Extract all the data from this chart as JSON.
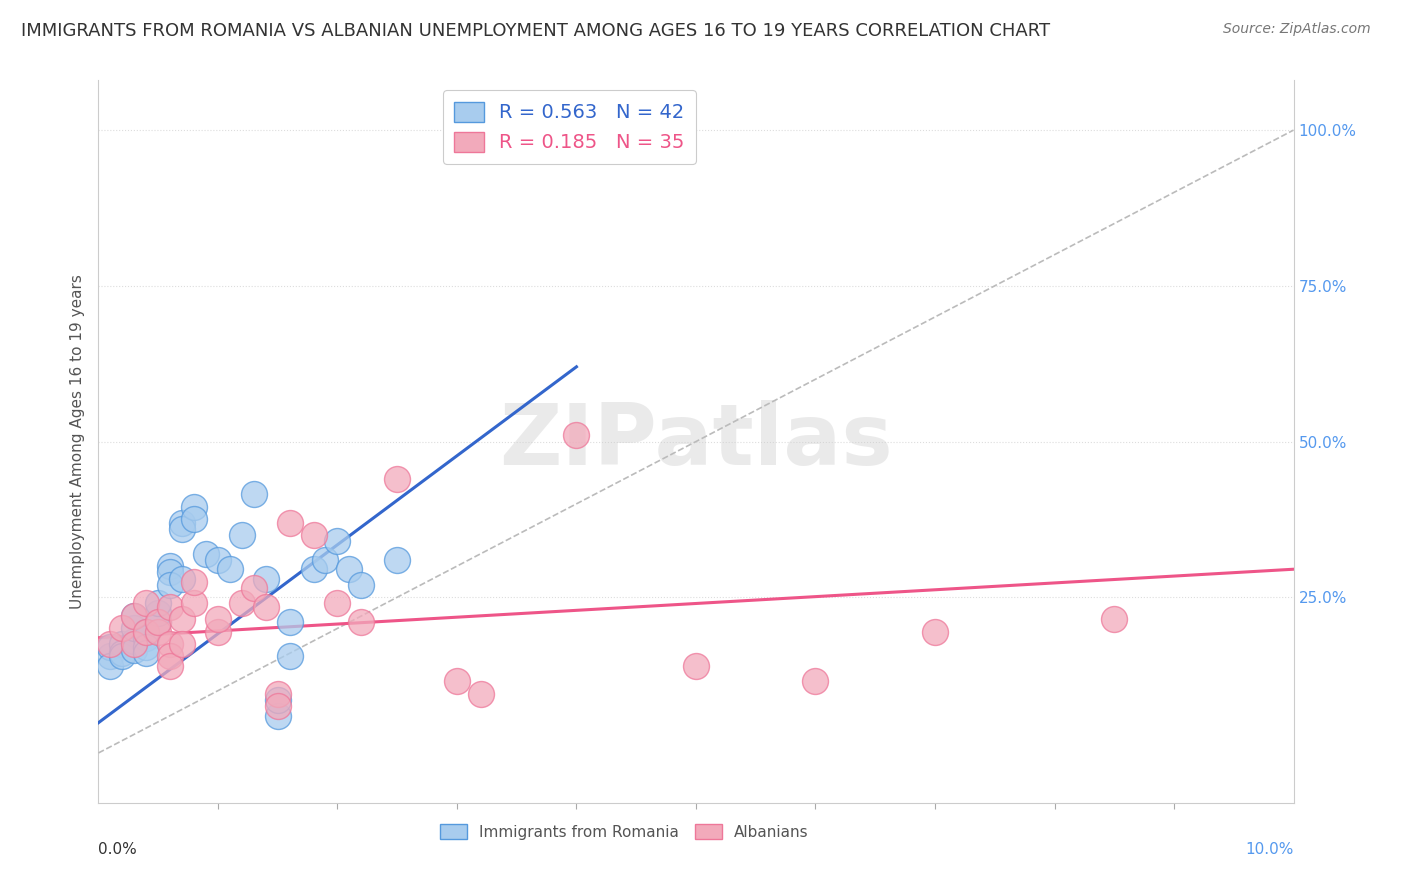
{
  "title": "IMMIGRANTS FROM ROMANIA VS ALBANIAN UNEMPLOYMENT AMONG AGES 16 TO 19 YEARS CORRELATION CHART",
  "source": "Source: ZipAtlas.com",
  "ylabel": "Unemployment Among Ages 16 to 19 years",
  "xmin": 0.0,
  "xmax": 0.1,
  "ymin": -0.08,
  "ymax": 1.08,
  "yticks_right": [
    0.25,
    0.5,
    0.75,
    1.0
  ],
  "ytick_labels_right": [
    "25.0%",
    "50.0%",
    "75.0%",
    "100.0%"
  ],
  "legend_blue_r": "R = 0.563",
  "legend_blue_n": "N = 42",
  "legend_pink_r": "R = 0.185",
  "legend_pink_n": "N = 35",
  "blue_color": "#A8CCEE",
  "pink_color": "#F2AABB",
  "blue_edge_color": "#5599DD",
  "pink_edge_color": "#EE7799",
  "blue_line_color": "#3366CC",
  "pink_line_color": "#EE5588",
  "diag_color": "#BBBBBB",
  "watermark": "ZIPatlas",
  "blue_scatter": [
    [
      0.001,
      0.155
    ],
    [
      0.001,
      0.17
    ],
    [
      0.001,
      0.14
    ],
    [
      0.002,
      0.175
    ],
    [
      0.002,
      0.16
    ],
    [
      0.002,
      0.155
    ],
    [
      0.003,
      0.18
    ],
    [
      0.003,
      0.165
    ],
    [
      0.003,
      0.2
    ],
    [
      0.003,
      0.22
    ],
    [
      0.004,
      0.195
    ],
    [
      0.004,
      0.185
    ],
    [
      0.004,
      0.17
    ],
    [
      0.004,
      0.16
    ],
    [
      0.005,
      0.21
    ],
    [
      0.005,
      0.225
    ],
    [
      0.005,
      0.24
    ],
    [
      0.006,
      0.3
    ],
    [
      0.006,
      0.29
    ],
    [
      0.006,
      0.27
    ],
    [
      0.007,
      0.37
    ],
    [
      0.007,
      0.36
    ],
    [
      0.007,
      0.28
    ],
    [
      0.008,
      0.395
    ],
    [
      0.008,
      0.375
    ],
    [
      0.009,
      0.32
    ],
    [
      0.01,
      0.31
    ],
    [
      0.011,
      0.295
    ],
    [
      0.012,
      0.35
    ],
    [
      0.013,
      0.415
    ],
    [
      0.014,
      0.28
    ],
    [
      0.015,
      0.06
    ],
    [
      0.015,
      0.085
    ],
    [
      0.016,
      0.21
    ],
    [
      0.018,
      0.295
    ],
    [
      0.019,
      0.31
    ],
    [
      0.02,
      0.34
    ],
    [
      0.021,
      0.295
    ],
    [
      0.022,
      0.27
    ],
    [
      0.025,
      0.31
    ],
    [
      0.04,
      0.99
    ],
    [
      0.016,
      0.155
    ]
  ],
  "pink_scatter": [
    [
      0.001,
      0.175
    ],
    [
      0.002,
      0.2
    ],
    [
      0.003,
      0.22
    ],
    [
      0.003,
      0.175
    ],
    [
      0.004,
      0.24
    ],
    [
      0.004,
      0.195
    ],
    [
      0.005,
      0.195
    ],
    [
      0.005,
      0.21
    ],
    [
      0.006,
      0.235
    ],
    [
      0.006,
      0.175
    ],
    [
      0.006,
      0.155
    ],
    [
      0.006,
      0.14
    ],
    [
      0.007,
      0.215
    ],
    [
      0.007,
      0.175
    ],
    [
      0.008,
      0.24
    ],
    [
      0.008,
      0.275
    ],
    [
      0.01,
      0.195
    ],
    [
      0.01,
      0.215
    ],
    [
      0.012,
      0.24
    ],
    [
      0.013,
      0.265
    ],
    [
      0.014,
      0.235
    ],
    [
      0.015,
      0.095
    ],
    [
      0.015,
      0.075
    ],
    [
      0.016,
      0.37
    ],
    [
      0.018,
      0.35
    ],
    [
      0.02,
      0.24
    ],
    [
      0.022,
      0.21
    ],
    [
      0.025,
      0.44
    ],
    [
      0.03,
      0.115
    ],
    [
      0.032,
      0.095
    ],
    [
      0.04,
      0.51
    ],
    [
      0.05,
      0.14
    ],
    [
      0.06,
      0.115
    ],
    [
      0.07,
      0.195
    ],
    [
      0.085,
      0.215
    ]
  ],
  "blue_line_x": [
    -0.002,
    0.04
  ],
  "blue_line_y": [
    0.02,
    0.62
  ],
  "pink_line_x": [
    0.0,
    0.1
  ],
  "pink_line_y": [
    0.185,
    0.295
  ],
  "diag_line_x": [
    0.0,
    0.1
  ],
  "diag_line_y": [
    0.0,
    1.0
  ],
  "grid_color": "#DDDDDD",
  "title_fontsize": 13,
  "label_fontsize": 11,
  "tick_fontsize": 11,
  "legend_fontsize": 14,
  "source_fontsize": 10,
  "xtick_positions": [
    0.01,
    0.02,
    0.03,
    0.04,
    0.05,
    0.06,
    0.07,
    0.08,
    0.09
  ]
}
